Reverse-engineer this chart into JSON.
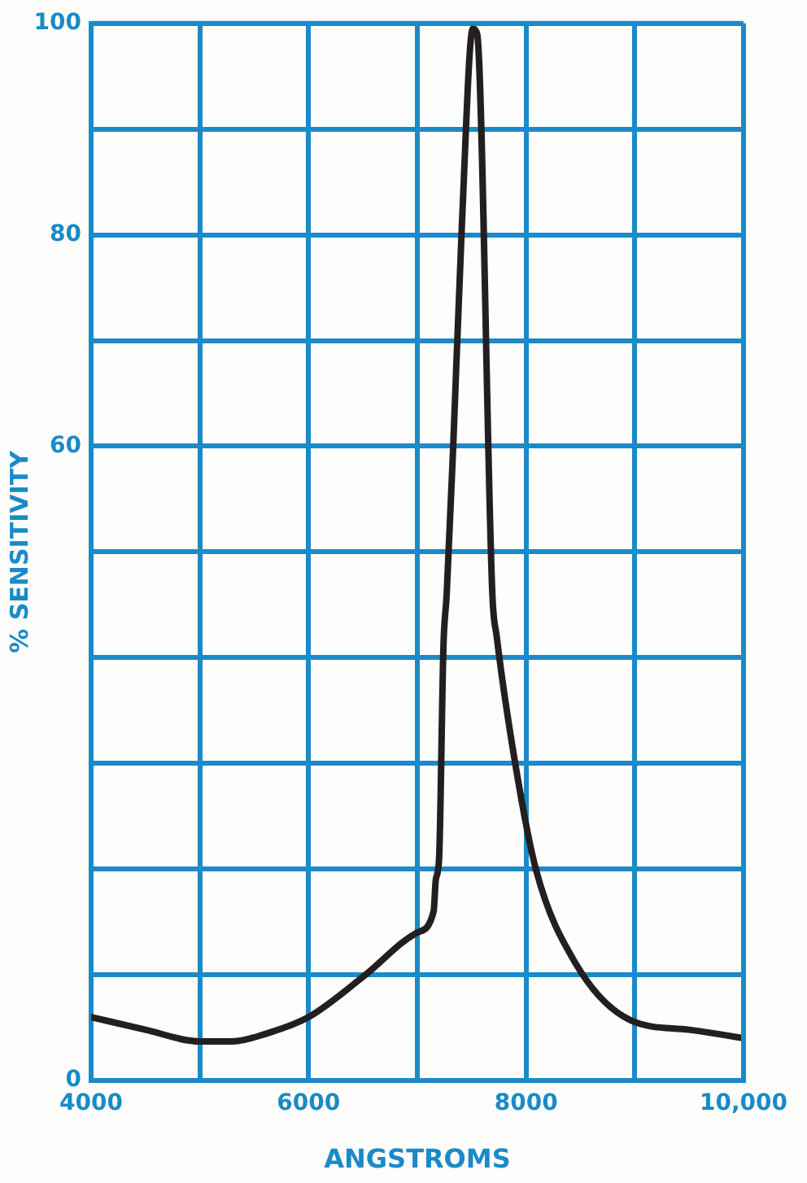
{
  "chart_data": {
    "type": "line",
    "xlabel": "ANGSTROMS",
    "ylabel": "% SENSITIVITY",
    "x": [
      4000,
      4500,
      5000,
      5300,
      5600,
      6000,
      6500,
      7000,
      7150,
      7170,
      7200,
      7240,
      7270,
      7330,
      7410,
      7510,
      7550,
      7690,
      7730,
      7900,
      8090,
      8460,
      8960,
      9500,
      10000
    ],
    "series": [
      {
        "color": "#231f20",
        "values": [
          6.0,
          4.8,
          3.7,
          3.7,
          4.4,
          6.0,
          9.8,
          14,
          16,
          19,
          21,
          41,
          46,
          60,
          81,
          99.5,
          99,
          46,
          42,
          30,
          20,
          11,
          5.7,
          4.8,
          4.0
        ]
      }
    ],
    "xlim": [
      4000,
      10000
    ],
    "ylim": [
      0,
      100
    ],
    "xticks": [
      4000,
      {
        "value": 5000,
        "label": null
      },
      6000,
      {
        "value": 7000,
        "label": null
      },
      8000,
      {
        "value": 9000,
        "label": null
      },
      {
        "value": 10000,
        "label": "10,000"
      }
    ],
    "yticks": [
      0,
      {
        "value": 10,
        "label": null
      },
      {
        "value": 20,
        "label": null
      },
      {
        "value": 30,
        "label": null
      },
      {
        "value": 40,
        "label": null
      },
      {
        "value": 50,
        "label": null
      },
      60,
      {
        "value": 70,
        "label": null
      },
      80,
      {
        "value": 90,
        "label": null
      },
      100
    ],
    "grid": true,
    "legend": false,
    "marker": "none",
    "line_style": "solid"
  }
}
